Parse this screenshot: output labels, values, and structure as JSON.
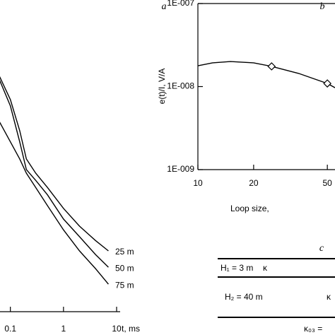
{
  "chart_data": [
    {
      "type": "line",
      "label": "a",
      "xlabel": "t, ms",
      "xscale": "log",
      "yscale": "log",
      "xlim": [
        0.06,
        10
      ],
      "xticks": [
        0.1,
        1,
        10
      ],
      "ylim": [
        1e-12,
        1e-06
      ],
      "yticks": [],
      "x": [
        0.06,
        0.1,
        0.15,
        0.2,
        0.3,
        0.5,
        1,
        2,
        4,
        7
      ],
      "series": [
        {
          "name": "25 m",
          "color": "#000000",
          "values": [
            3e-08,
            1e-08,
            2.6e-09,
            7.6e-10,
            4.1e-10,
            2.2e-10,
            8.9e-11,
            4.1e-11,
            2.2e-11,
            1.4e-11
          ]
        },
        {
          "name": "50 m",
          "color": "#000000",
          "values": [
            2.6e-08,
            7.6e-09,
            1.6e-09,
            4.8e-10,
            3e-10,
            1.6e-10,
            5.6e-11,
            2.6e-11,
            1.2e-11,
            6.9e-12
          ]
        },
        {
          "name": "75 m",
          "color": "#000000",
          "values": [
            4.1e-09,
            1.6e-09,
            7.6e-10,
            4.1e-10,
            2.2e-10,
            1e-10,
            3.5e-11,
            1.4e-11,
            6.5e-12,
            3.3e-12
          ]
        }
      ]
    },
    {
      "type": "line",
      "label": "b",
      "xlabel": "Loop size,",
      "ylabel": "e(t)/I, V/A",
      "xscale": "log",
      "yscale": "log",
      "xlim": [
        10,
        55
      ],
      "xticks": [
        10,
        20,
        50
      ],
      "ylim": [
        1e-09,
        1e-07
      ],
      "yticks": [
        {
          "value": 1e-09,
          "label": "1E-009"
        },
        {
          "value": 1e-08,
          "label": "1E-008"
        },
        {
          "value": 1e-07,
          "label": "1E-007"
        }
      ],
      "x": [
        10,
        12,
        15,
        20,
        25,
        35,
        50,
        55
      ],
      "values": [
        1.78e-08,
        1.93e-08,
        2e-08,
        1.93e-08,
        1.75e-08,
        1.44e-08,
        1.09e-08,
        9.7e-09
      ],
      "color": "#000000",
      "markers": {
        "x": [
          25,
          50
        ],
        "values": [
          1.75e-08,
          1.09e-08
        ]
      }
    }
  ],
  "diagram": {
    "label": "c",
    "layers": [
      {
        "thickness": "H₁ = 3 m",
        "property": "κ"
      },
      {
        "thickness": "H₂ = 40 m",
        "property": "κ"
      },
      {
        "property": "κ₀₃ = "
      }
    ]
  }
}
